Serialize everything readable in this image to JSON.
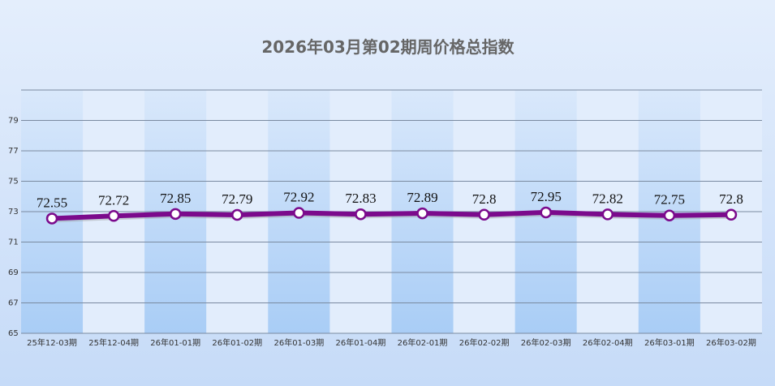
{
  "chart_data": {
    "type": "line",
    "title": "2026年03月第02期周价格总指数",
    "categories": [
      "25年12-03期",
      "25年12-04期",
      "26年01-01期",
      "26年01-02期",
      "26年01-03期",
      "26年01-04期",
      "26年02-01期",
      "26年02-02期",
      "26年02-03期",
      "26年02-04期",
      "26年03-01期",
      "26年03-02期"
    ],
    "series": [
      {
        "color": "#7b0a8c",
        "values": [
          72.55,
          72.72,
          72.85,
          72.79,
          72.92,
          72.83,
          72.89,
          72.8,
          72.95,
          72.82,
          72.75,
          72.8
        ]
      }
    ],
    "ylim": [
      65,
      81
    ],
    "yticks": [
      65,
      67,
      69,
      71,
      73,
      75,
      77,
      79
    ],
    "grid": true
  }
}
